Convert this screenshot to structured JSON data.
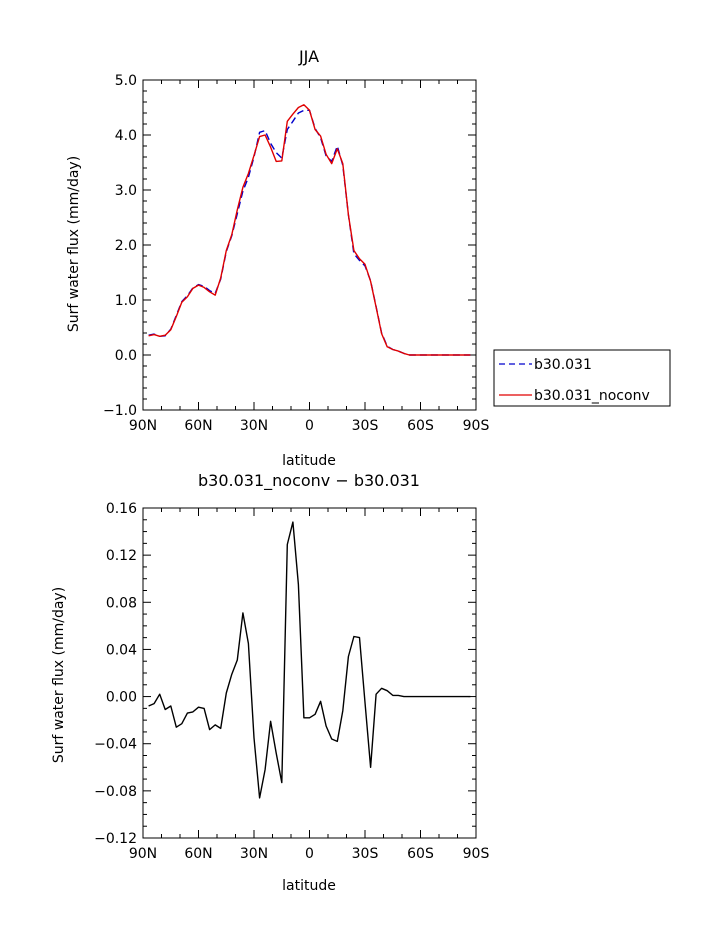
{
  "chart_data": [
    {
      "type": "line",
      "title": "JJA",
      "xlabel": "latitude",
      "ylabel": "Surf water flux (mm/day)",
      "xlim": [
        -90,
        90
      ],
      "ylim": [
        -1.0,
        5.0
      ],
      "x_reversed": true,
      "xticks": [
        90,
        60,
        30,
        0,
        -30,
        -60,
        -90
      ],
      "xtick_labels": [
        "90N",
        "60N",
        "30N",
        "0",
        "30S",
        "60S",
        "90S"
      ],
      "yticks": [
        -1.0,
        0.0,
        1.0,
        2.0,
        3.0,
        4.0,
        5.0
      ],
      "ytick_labels": [
        "−1.0",
        "0.0",
        "1.0",
        "2.0",
        "3.0",
        "4.0",
        "5.0"
      ],
      "grid": false,
      "legend_position": "right",
      "series": [
        {
          "name": "b30.031",
          "color": "#0000cc",
          "dash": "dashed",
          "x": [
            87,
            84,
            81,
            78,
            75,
            72,
            69,
            66,
            63,
            60,
            57,
            54,
            51,
            48,
            45,
            42,
            39,
            36,
            33,
            30,
            27,
            24,
            21,
            18,
            15,
            12,
            9,
            6,
            3,
            0,
            -3,
            -6,
            -9,
            -12,
            -15,
            -18,
            -21,
            -24,
            -27,
            -30,
            -33,
            -36,
            -39,
            -42,
            -45,
            -48,
            -51,
            -54,
            -57,
            -60,
            -63,
            -66,
            -69,
            -72,
            -75,
            -78,
            -81,
            -84,
            -87
          ],
          "values": [
            0.36,
            0.38,
            0.34,
            0.35,
            0.47,
            0.72,
            0.97,
            1.08,
            1.22,
            1.28,
            1.25,
            1.17,
            1.12,
            1.38,
            1.88,
            2.17,
            2.57,
            2.98,
            3.23,
            3.6,
            4.05,
            4.08,
            3.85,
            3.68,
            3.58,
            4.1,
            4.25,
            4.4,
            4.45,
            4.45,
            4.12,
            3.95,
            3.62,
            3.52,
            3.8,
            3.45,
            2.55,
            1.84,
            1.72,
            1.62,
            1.35,
            0.88,
            0.4,
            0.16,
            0.1,
            0.07,
            0.03,
            0.0,
            0.0,
            0.0,
            0.0,
            0.0,
            0.0,
            0.0,
            0.0,
            0.0,
            0.0,
            0.0,
            0.0
          ]
        },
        {
          "name": "b30.031_noconv",
          "color": "#e00000",
          "dash": "solid",
          "x": [
            87,
            84,
            81,
            78,
            75,
            72,
            69,
            66,
            63,
            60,
            57,
            54,
            51,
            48,
            45,
            42,
            39,
            36,
            33,
            30,
            27,
            24,
            21,
            18,
            15,
            12,
            9,
            6,
            3,
            0,
            -3,
            -6,
            -9,
            -12,
            -15,
            -18,
            -21,
            -24,
            -27,
            -30,
            -33,
            -36,
            -39,
            -42,
            -45,
            -48,
            -51,
            -54,
            -57,
            -60,
            -63,
            -66,
            -69,
            -72,
            -75,
            -78,
            -81,
            -84,
            -87
          ],
          "values": [
            0.35,
            0.37,
            0.34,
            0.36,
            0.46,
            0.7,
            0.96,
            1.06,
            1.21,
            1.27,
            1.23,
            1.15,
            1.09,
            1.4,
            1.9,
            2.19,
            2.64,
            3.05,
            3.3,
            3.63,
            3.97,
            4.0,
            3.78,
            3.52,
            3.53,
            4.25,
            4.38,
            4.5,
            4.55,
            4.45,
            4.1,
            3.98,
            3.65,
            3.48,
            3.75,
            3.48,
            2.55,
            1.9,
            1.75,
            1.65,
            1.34,
            0.87,
            0.39,
            0.15,
            0.1,
            0.07,
            0.03,
            0.0,
            0.0,
            0.0,
            0.0,
            0.0,
            0.0,
            0.0,
            0.0,
            0.0,
            0.0,
            0.0,
            0.0
          ]
        }
      ]
    },
    {
      "type": "line",
      "title": "b30.031_noconv − b30.031",
      "xlabel": "latitude",
      "ylabel": "Surf water flux (mm/day)",
      "xlim": [
        -90,
        90
      ],
      "ylim": [
        -0.12,
        0.16
      ],
      "x_reversed": true,
      "xticks": [
        90,
        60,
        30,
        0,
        -30,
        -60,
        -90
      ],
      "xtick_labels": [
        "90N",
        "60N",
        "30N",
        "0",
        "30S",
        "60S",
        "90S"
      ],
      "yticks": [
        -0.12,
        -0.08,
        -0.04,
        0.0,
        0.04,
        0.08,
        0.12,
        0.16
      ],
      "ytick_labels": [
        "−0.12",
        "−0.08",
        "−0.04",
        "0.00",
        "0.04",
        "0.08",
        "0.12",
        "0.16"
      ],
      "grid": false,
      "series": [
        {
          "color": "#000000",
          "dash": "solid",
          "x": [
            87,
            84,
            81,
            78,
            75,
            72,
            69,
            66,
            63,
            60,
            57,
            54,
            51,
            48,
            45,
            42,
            39,
            36,
            33,
            30,
            27,
            24,
            21,
            18,
            15,
            12,
            9,
            6,
            3,
            0,
            -3,
            -6,
            -9,
            -12,
            -15,
            -18,
            -21,
            -24,
            -27,
            -30,
            -33,
            -36,
            -39,
            -42,
            -45,
            -48,
            -51,
            -54,
            -57,
            -60,
            -63,
            -66,
            -69,
            -72,
            -75,
            -78,
            -81,
            -84,
            -87
          ],
          "values": [
            -0.008,
            -0.006,
            0.002,
            -0.011,
            -0.008,
            -0.026,
            -0.023,
            -0.014,
            -0.013,
            -0.009,
            -0.01,
            -0.028,
            -0.024,
            -0.027,
            0.003,
            0.019,
            0.031,
            0.071,
            0.045,
            -0.035,
            -0.086,
            -0.062,
            -0.021,
            -0.048,
            -0.073,
            0.129,
            0.148,
            0.095,
            -0.018,
            -0.018,
            -0.015,
            -0.004,
            -0.025,
            -0.036,
            -0.038,
            -0.012,
            0.034,
            0.051,
            0.05,
            -0.005,
            -0.06,
            0.002,
            0.007,
            0.005,
            0.001,
            0.001,
            0.0,
            0.0,
            0.0,
            0.0,
            0.0,
            0.0,
            0.0,
            0.0,
            0.0,
            0.0,
            0.0,
            0.0,
            0.0
          ]
        }
      ]
    }
  ]
}
